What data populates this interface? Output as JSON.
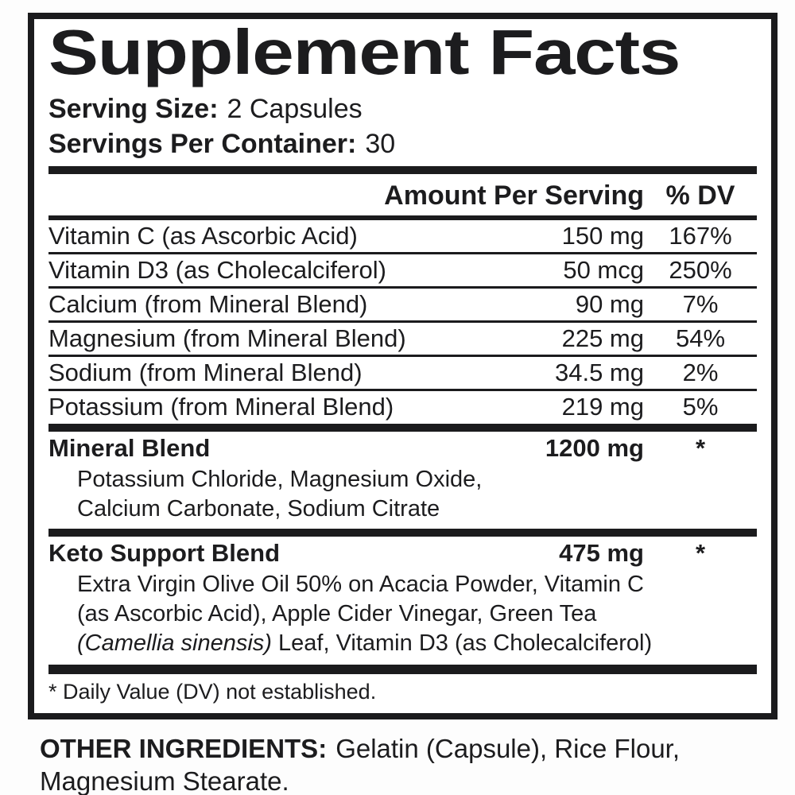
{
  "colors": {
    "ink": "#1c1c1e",
    "panel_border": "#1b1b1d",
    "background": "#ffffff"
  },
  "label": {
    "title": "Supplement Facts",
    "serving_size": {
      "label": "Serving Size:",
      "value": "2 Capsules"
    },
    "servings_per_container": {
      "label": "Servings Per Container:",
      "value": "30"
    },
    "columns": {
      "amount": "Amount Per Serving",
      "dv": "% DV"
    },
    "rows": [
      {
        "name": "Vitamin C (as Ascorbic Acid)",
        "amount": "150 mg",
        "dv": "167%"
      },
      {
        "name": "Vitamin D3 (as Cholecalciferol)",
        "amount": "50 mcg",
        "dv": "250%"
      },
      {
        "name": "Calcium (from Mineral Blend)",
        "amount": "90 mg",
        "dv": "7%"
      },
      {
        "name": "Magnesium (from Mineral Blend)",
        "amount": "225 mg",
        "dv": "54%"
      },
      {
        "name": "Sodium (from Mineral Blend)",
        "amount": "34.5 mg",
        "dv": "2%"
      },
      {
        "name": "Potassium (from Mineral Blend)",
        "amount": "219 mg",
        "dv": "5%"
      }
    ],
    "blends": [
      {
        "name": "Mineral Blend",
        "amount": "1200 mg",
        "dv": "*",
        "lines": [
          "Potassium Chloride, Magnesium Oxide,",
          "Calcium Carbonate, Sodium Citrate"
        ]
      },
      {
        "name": "Keto Support Blend",
        "amount": "475 mg",
        "dv": "*",
        "lines": [
          "Extra Virgin Olive Oil 50% on Acacia Powder, Vitamin C",
          "(as Ascorbic Acid), Apple Cider Vinegar, Green Tea"
        ],
        "last_line": {
          "italic": "(Camellia sinensis)",
          "rest": " Leaf, Vitamin D3 (as Cholecalciferol)"
        }
      }
    ],
    "footnote": "* Daily Value (DV) not established.",
    "other_ingredients": {
      "label": "OTHER INGREDIENTS:",
      "value": "Gelatin (Capsule), Rice Flour, Magnesium Stearate."
    }
  }
}
